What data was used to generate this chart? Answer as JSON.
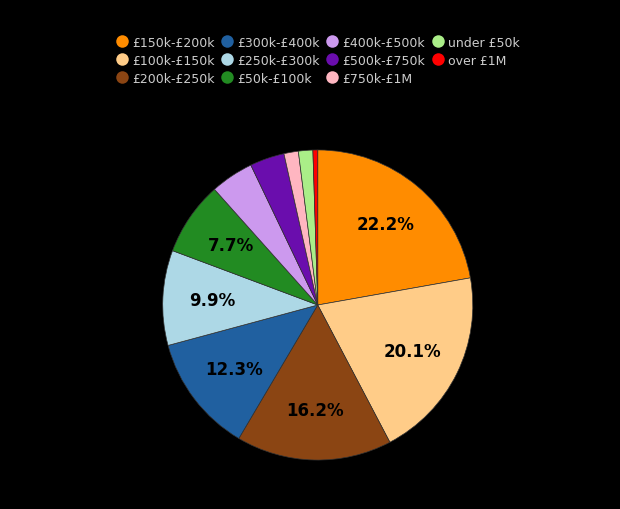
{
  "labels": [
    "£150k-£200k",
    "£100k-£150k",
    "£200k-£250k",
    "£300k-£400k",
    "£250k-£300k",
    "£50k-£100k",
    "£400k-£500k",
    "£500k-£750k",
    "£750k-£1M",
    "under £50k",
    "over £1M"
  ],
  "values": [
    22.2,
    20.1,
    16.2,
    12.3,
    9.9,
    7.7,
    4.5,
    3.6,
    1.5,
    1.5,
    0.5
  ],
  "colors": [
    "#ff8c00",
    "#ffcc88",
    "#8b4513",
    "#2060a0",
    "#add8e6",
    "#228b22",
    "#cc99ee",
    "#6a0dad",
    "#ffb6c1",
    "#aaee88",
    "#ff0000"
  ],
  "threshold_pct": 7.0,
  "background_color": "#000000",
  "text_color": "#cccccc",
  "label_color": "#000000",
  "label_fontsize": 12,
  "legend_fontsize": 9,
  "startangle": 90,
  "pctdistance": 0.68
}
